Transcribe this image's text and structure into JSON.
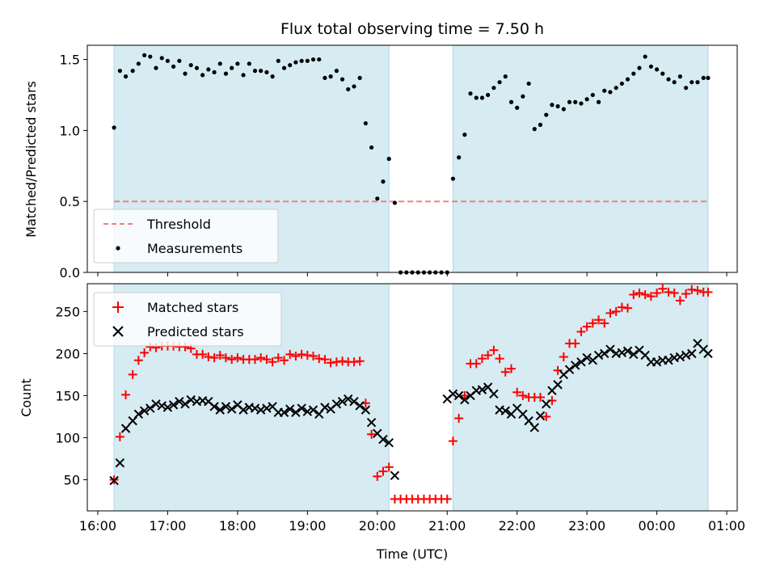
{
  "title": "Flux total observing time = 7.50 h",
  "colors": {
    "shade": "#add8e6",
    "threshold": "#f08080",
    "matched": "#ff0000",
    "predicted": "#000000",
    "measurement": "#000000"
  },
  "chart_data": [
    {
      "type": "scatter",
      "panel": "top",
      "ylabel": "Matched/Predicted stars",
      "xlabel": "",
      "xlim": [
        -0.15,
        9.15
      ],
      "ylim": [
        0,
        1.6
      ],
      "x_tick_values": [
        0,
        1,
        2,
        3,
        4,
        5,
        6,
        7,
        8,
        9
      ],
      "x_tick_labels": [],
      "y_ticks": [
        0.0,
        0.5,
        1.0,
        1.5
      ],
      "y_tick_labels": [
        "0.0",
        "0.5",
        "1.0",
        "1.5"
      ],
      "legend": {
        "placement": "lower-left",
        "entries": [
          {
            "label": "Threshold",
            "marker": "dash",
            "color": "#f08080"
          },
          {
            "label": "Measurements",
            "marker": "dot",
            "color": "#000000"
          }
        ]
      },
      "shaded_spans": [
        [
          0.233,
          4.167
        ],
        [
          5.083,
          8.733
        ]
      ],
      "threshold": {
        "y": 0.5,
        "x_range": [
          0.233,
          8.733
        ]
      },
      "series": [
        {
          "name": "Measurements",
          "x": [
            0.233,
            0.317,
            0.4,
            0.5,
            0.583,
            0.667,
            0.75,
            0.833,
            0.917,
            1.0,
            1.083,
            1.167,
            1.25,
            1.333,
            1.417,
            1.5,
            1.583,
            1.667,
            1.75,
            1.833,
            1.917,
            2.0,
            2.083,
            2.167,
            2.25,
            2.333,
            2.417,
            2.5,
            2.583,
            2.667,
            2.75,
            2.833,
            2.917,
            3.0,
            3.083,
            3.167,
            3.25,
            3.333,
            3.417,
            3.5,
            3.583,
            3.667,
            3.75,
            3.833,
            3.917,
            4.0,
            4.083,
            4.167,
            4.25,
            4.333,
            4.417,
            4.5,
            4.583,
            4.667,
            4.75,
            4.833,
            4.917,
            5.0,
            5.083,
            5.167,
            5.25,
            5.333,
            5.417,
            5.5,
            5.583,
            5.667,
            5.75,
            5.833,
            5.917,
            6.0,
            6.083,
            6.167,
            6.25,
            6.333,
            6.417,
            6.5,
            6.583,
            6.667,
            6.75,
            6.833,
            6.917,
            7.0,
            7.083,
            7.167,
            7.25,
            7.333,
            7.417,
            7.5,
            7.583,
            7.667,
            7.75,
            7.833,
            7.917,
            8.0,
            8.083,
            8.167,
            8.25,
            8.333,
            8.417,
            8.5,
            8.583,
            8.667,
            8.733
          ],
          "y": [
            1.02,
            1.42,
            1.38,
            1.42,
            1.47,
            1.53,
            1.52,
            1.44,
            1.51,
            1.49,
            1.45,
            1.49,
            1.4,
            1.46,
            1.44,
            1.39,
            1.43,
            1.41,
            1.47,
            1.4,
            1.44,
            1.47,
            1.39,
            1.47,
            1.42,
            1.42,
            1.41,
            1.38,
            1.49,
            1.44,
            1.46,
            1.48,
            1.49,
            1.49,
            1.5,
            1.5,
            1.37,
            1.38,
            1.42,
            1.36,
            1.29,
            1.31,
            1.37,
            1.05,
            0.88,
            0.52,
            0.64,
            0.8,
            0.49,
            0.0,
            0.0,
            0.0,
            0.0,
            0.0,
            0.0,
            0.0,
            0.0,
            0.0,
            0.66,
            0.81,
            0.97,
            1.26,
            1.23,
            1.23,
            1.25,
            1.3,
            1.34,
            1.38,
            1.2,
            1.16,
            1.24,
            1.33,
            1.01,
            1.04,
            1.11,
            1.18,
            1.17,
            1.15,
            1.2,
            1.2,
            1.19,
            1.22,
            1.25,
            1.2,
            1.28,
            1.27,
            1.3,
            1.33,
            1.36,
            1.4,
            1.44,
            1.52,
            1.45,
            1.43,
            1.4,
            1.36,
            1.34,
            1.38,
            1.3,
            1.34,
            1.34,
            1.37,
            1.37
          ]
        }
      ]
    },
    {
      "type": "scatter",
      "panel": "bottom",
      "ylabel": "Count",
      "xlabel": "Time (UTC)",
      "xlim": [
        -0.15,
        9.15
      ],
      "ylim": [
        13,
        283
      ],
      "x_tick_values": [
        0,
        1,
        2,
        3,
        4,
        5,
        6,
        7,
        8,
        9
      ],
      "x_tick_labels": [
        "16:00",
        "17:00",
        "18:00",
        "19:00",
        "20:00",
        "21:00",
        "22:00",
        "23:00",
        "00:00",
        "01:00"
      ],
      "y_ticks": [
        50,
        100,
        150,
        200,
        250
      ],
      "y_tick_labels": [
        "50",
        "100",
        "150",
        "200",
        "250"
      ],
      "legend": {
        "placement": "upper-left",
        "entries": [
          {
            "label": "Matched stars",
            "marker": "plus",
            "color": "#ff0000"
          },
          {
            "label": "Predicted stars",
            "marker": "x",
            "color": "#000000"
          }
        ]
      },
      "shaded_spans": [
        [
          0.233,
          4.167
        ],
        [
          5.083,
          8.733
        ]
      ],
      "series": [
        {
          "name": "Matched stars",
          "x": [
            0.233,
            0.317,
            0.4,
            0.5,
            0.583,
            0.667,
            0.75,
            0.833,
            0.917,
            1.0,
            1.083,
            1.167,
            1.25,
            1.333,
            1.417,
            1.5,
            1.583,
            1.667,
            1.75,
            1.833,
            1.917,
            2.0,
            2.083,
            2.167,
            2.25,
            2.333,
            2.417,
            2.5,
            2.583,
            2.667,
            2.75,
            2.833,
            2.917,
            3.0,
            3.083,
            3.167,
            3.25,
            3.333,
            3.417,
            3.5,
            3.583,
            3.667,
            3.75,
            3.833,
            3.917,
            4.0,
            4.083,
            4.167,
            4.25,
            4.333,
            4.417,
            4.5,
            4.583,
            4.667,
            4.75,
            4.833,
            4.917,
            5.0,
            5.083,
            5.167,
            5.25,
            5.333,
            5.417,
            5.5,
            5.583,
            5.667,
            5.75,
            5.833,
            5.917,
            6.0,
            6.083,
            6.167,
            6.25,
            6.333,
            6.417,
            6.5,
            6.583,
            6.667,
            6.75,
            6.833,
            6.917,
            7.0,
            7.083,
            7.167,
            7.25,
            7.333,
            7.417,
            7.5,
            7.583,
            7.667,
            7.75,
            7.833,
            7.917,
            8.0,
            8.083,
            8.167,
            8.25,
            8.333,
            8.417,
            8.5,
            8.583,
            8.667,
            8.733
          ],
          "y": [
            50,
            101,
            151,
            175,
            192,
            201,
            208,
            207,
            209,
            209,
            209,
            208,
            208,
            206,
            199,
            199,
            196,
            195,
            198,
            195,
            193,
            195,
            193,
            193,
            193,
            195,
            193,
            190,
            195,
            192,
            199,
            197,
            199,
            198,
            197,
            194,
            193,
            189,
            190,
            191,
            190,
            190,
            191,
            141,
            104,
            54,
            60,
            65,
            27,
            27,
            27,
            27,
            27,
            27,
            27,
            27,
            27,
            27,
            96,
            123,
            150,
            188,
            188,
            194,
            198,
            204,
            194,
            178,
            182,
            154,
            150,
            148,
            148,
            148,
            125,
            144,
            180,
            196,
            212,
            212,
            226,
            232,
            236,
            240,
            236,
            248,
            250,
            255,
            254,
            270,
            272,
            270,
            268,
            272,
            277,
            273,
            272,
            263,
            271,
            276,
            275,
            273,
            273
          ]
        },
        {
          "name": "Predicted stars",
          "x": [
            0.233,
            0.317,
            0.4,
            0.5,
            0.583,
            0.667,
            0.75,
            0.833,
            0.917,
            1.0,
            1.083,
            1.167,
            1.25,
            1.333,
            1.417,
            1.5,
            1.583,
            1.667,
            1.75,
            1.833,
            1.917,
            2.0,
            2.083,
            2.167,
            2.25,
            2.333,
            2.417,
            2.5,
            2.583,
            2.667,
            2.75,
            2.833,
            2.917,
            3.0,
            3.083,
            3.167,
            3.25,
            3.333,
            3.417,
            3.5,
            3.583,
            3.667,
            3.75,
            3.833,
            3.917,
            4.0,
            4.083,
            4.167,
            4.25,
            5.0,
            5.083,
            5.167,
            5.25,
            5.333,
            5.417,
            5.5,
            5.583,
            5.667,
            5.75,
            5.833,
            5.917,
            6.0,
            6.083,
            6.167,
            6.25,
            6.333,
            6.417,
            6.5,
            6.583,
            6.667,
            6.75,
            6.833,
            6.917,
            7.0,
            7.083,
            7.167,
            7.25,
            7.333,
            7.417,
            7.5,
            7.583,
            7.667,
            7.75,
            7.833,
            7.917,
            8.0,
            8.083,
            8.167,
            8.25,
            8.333,
            8.417,
            8.5,
            8.583,
            8.667,
            8.733
          ],
          "y": [
            49,
            70,
            111,
            120,
            128,
            132,
            135,
            140,
            138,
            136,
            139,
            143,
            140,
            145,
            143,
            144,
            143,
            137,
            133,
            137,
            134,
            139,
            133,
            136,
            135,
            133,
            135,
            137,
            130,
            130,
            134,
            130,
            135,
            131,
            133,
            128,
            136,
            134,
            140,
            143,
            146,
            143,
            138,
            133,
            118,
            105,
            98,
            94,
            55,
            146,
            152,
            150,
            145,
            150,
            156,
            157,
            160,
            152,
            133,
            132,
            128,
            135,
            128,
            120,
            112,
            126,
            140,
            156,
            163,
            175,
            181,
            186,
            190,
            195,
            192,
            198,
            200,
            205,
            200,
            201,
            203,
            199,
            204,
            198,
            190,
            190,
            192,
            192,
            195,
            196,
            198,
            200,
            212,
            205,
            200
          ]
        }
      ]
    }
  ]
}
